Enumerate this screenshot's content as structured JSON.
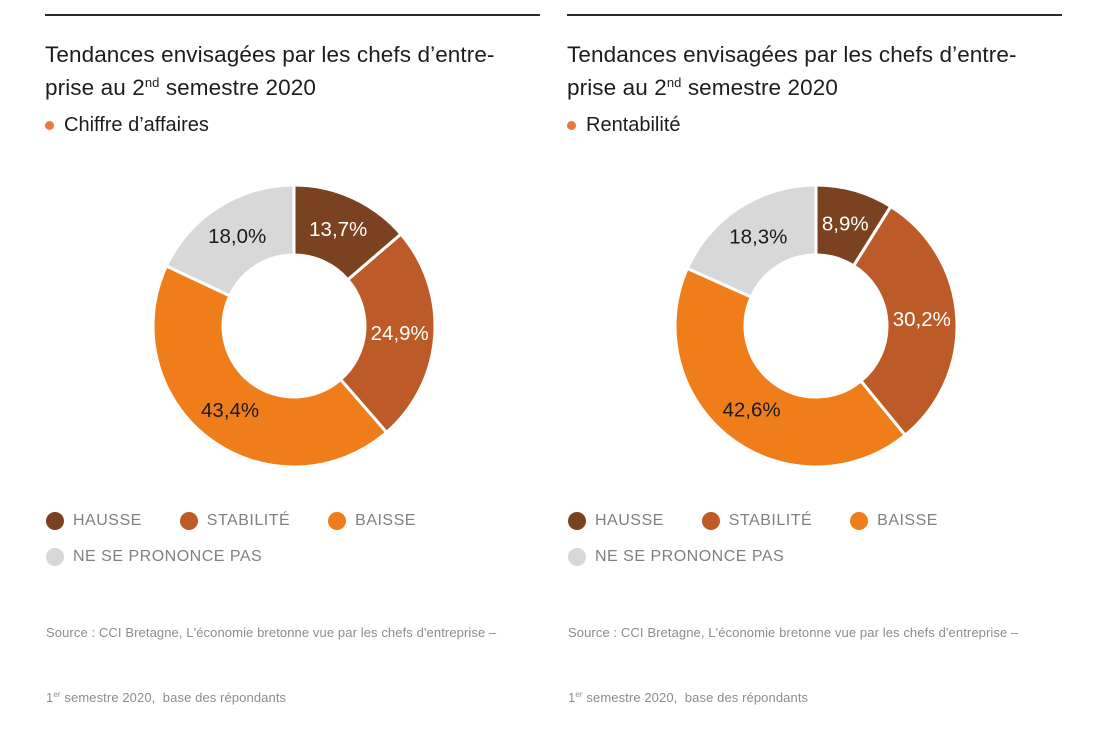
{
  "colors": {
    "hausse": "#7A4220",
    "stabilite": "#BC5B28",
    "baisse": "#EF7D1A",
    "ne_se_prononce_pas": "#D8D8D8",
    "bullet_accent": "#E87A3E",
    "rule": "#2B2B2B",
    "title_text": "#1D1D1B",
    "legend_text": "#7E8083",
    "source_text": "#8A8C8E",
    "background": "#FFFFFF"
  },
  "charts": [
    {
      "title_line1": "Tendances envisagées par les chefs d’entre-",
      "title_line2_pre": "prise au 2",
      "title_sup": "nd",
      "title_line2_post": " semestre 2020",
      "subtitle": "Chiffre d’affaires",
      "segments": [
        {
          "name": "HAUSSE",
          "value": 13.7,
          "label": "13,7%",
          "color": "#7A4220",
          "label_color": "#FFFFFF"
        },
        {
          "name": "STABILITÉ",
          "value": 24.9,
          "label": "24,9%",
          "color": "#BC5B28",
          "label_color": "#FFFFFF"
        },
        {
          "name": "BAISSE",
          "value": 43.4,
          "label": "43,4%",
          "color": "#EF7D1A",
          "label_color": "#1A1A1A"
        },
        {
          "name": "NE SE PRONONCE PAS",
          "value": 18.0,
          "label": "18,0%",
          "color": "#D8D8D8",
          "label_color": "#1A1A1A"
        }
      ],
      "source_line1": "Source : CCI Bretagne, L'économie bretonne vue par les chefs d'entreprise –",
      "source_line2_pre": "1",
      "source_sup": "er",
      "source_line2_post": " semestre 2020,  base des répondants"
    },
    {
      "title_line1": "Tendances envisagées par les chefs d’entre-",
      "title_line2_pre": "prise au 2",
      "title_sup": "nd",
      "title_line2_post": " semestre 2020",
      "subtitle": "Rentabilité",
      "segments": [
        {
          "name": "HAUSSE",
          "value": 8.9,
          "label": "8,9%",
          "color": "#7A4220",
          "label_color": "#FFFFFF"
        },
        {
          "name": "STABILITÉ",
          "value": 30.2,
          "label": "30,2%",
          "color": "#BC5B28",
          "label_color": "#FFFFFF"
        },
        {
          "name": "BAISSE",
          "value": 42.6,
          "label": "42,6%",
          "color": "#EF7D1A",
          "label_color": "#1A1A1A"
        },
        {
          "name": "NE SE PRONONCE PAS",
          "value": 18.3,
          "label": "18,3%",
          "color": "#D8D8D8",
          "label_color": "#1A1A1A"
        }
      ],
      "source_line1": "Source : CCI Bretagne, L'économie bretonne vue par les chefs d'entreprise –",
      "source_line2_pre": "1",
      "source_sup": "er",
      "source_line2_post": " semestre 2020,  base des répondants"
    }
  ],
  "chart_data": [
    {
      "type": "pie",
      "subtype": "donut",
      "title": "Tendances envisagées par les chefs d’entreprise au 2nd semestre 2020",
      "series_label": "Chiffre d’affaires",
      "categories": [
        "HAUSSE",
        "STABILITÉ",
        "BAISSE",
        "NE SE PRONONCE PAS"
      ],
      "values": [
        13.7,
        24.9,
        43.4,
        18.0
      ],
      "value_labels": [
        "13,7%",
        "24,9%",
        "43,4%",
        "18,0%"
      ],
      "colors": [
        "#7A4220",
        "#BC5B28",
        "#EF7D1A",
        "#D8D8D8"
      ],
      "start_angle_deg": 0,
      "direction": "clockwise",
      "legend_position": "bottom",
      "source": "Source : CCI Bretagne, L'économie bretonne vue par les chefs d'entreprise – 1er semestre 2020, base des répondants"
    },
    {
      "type": "pie",
      "subtype": "donut",
      "title": "Tendances envisagées par les chefs d’entreprise au 2nd semestre 2020",
      "series_label": "Rentabilité",
      "categories": [
        "HAUSSE",
        "STABILITÉ",
        "BAISSE",
        "NE SE PRONONCE PAS"
      ],
      "values": [
        8.9,
        30.2,
        42.6,
        18.3
      ],
      "value_labels": [
        "8,9%",
        "30,2%",
        "42,6%",
        "18,3%"
      ],
      "colors": [
        "#7A4220",
        "#BC5B28",
        "#EF7D1A",
        "#D8D8D8"
      ],
      "start_angle_deg": 0,
      "direction": "clockwise",
      "legend_position": "bottom",
      "source": "Source : CCI Bretagne, L'économie bretonne vue par les chefs d'entreprise – 1er semestre 2020, base des répondants"
    }
  ]
}
